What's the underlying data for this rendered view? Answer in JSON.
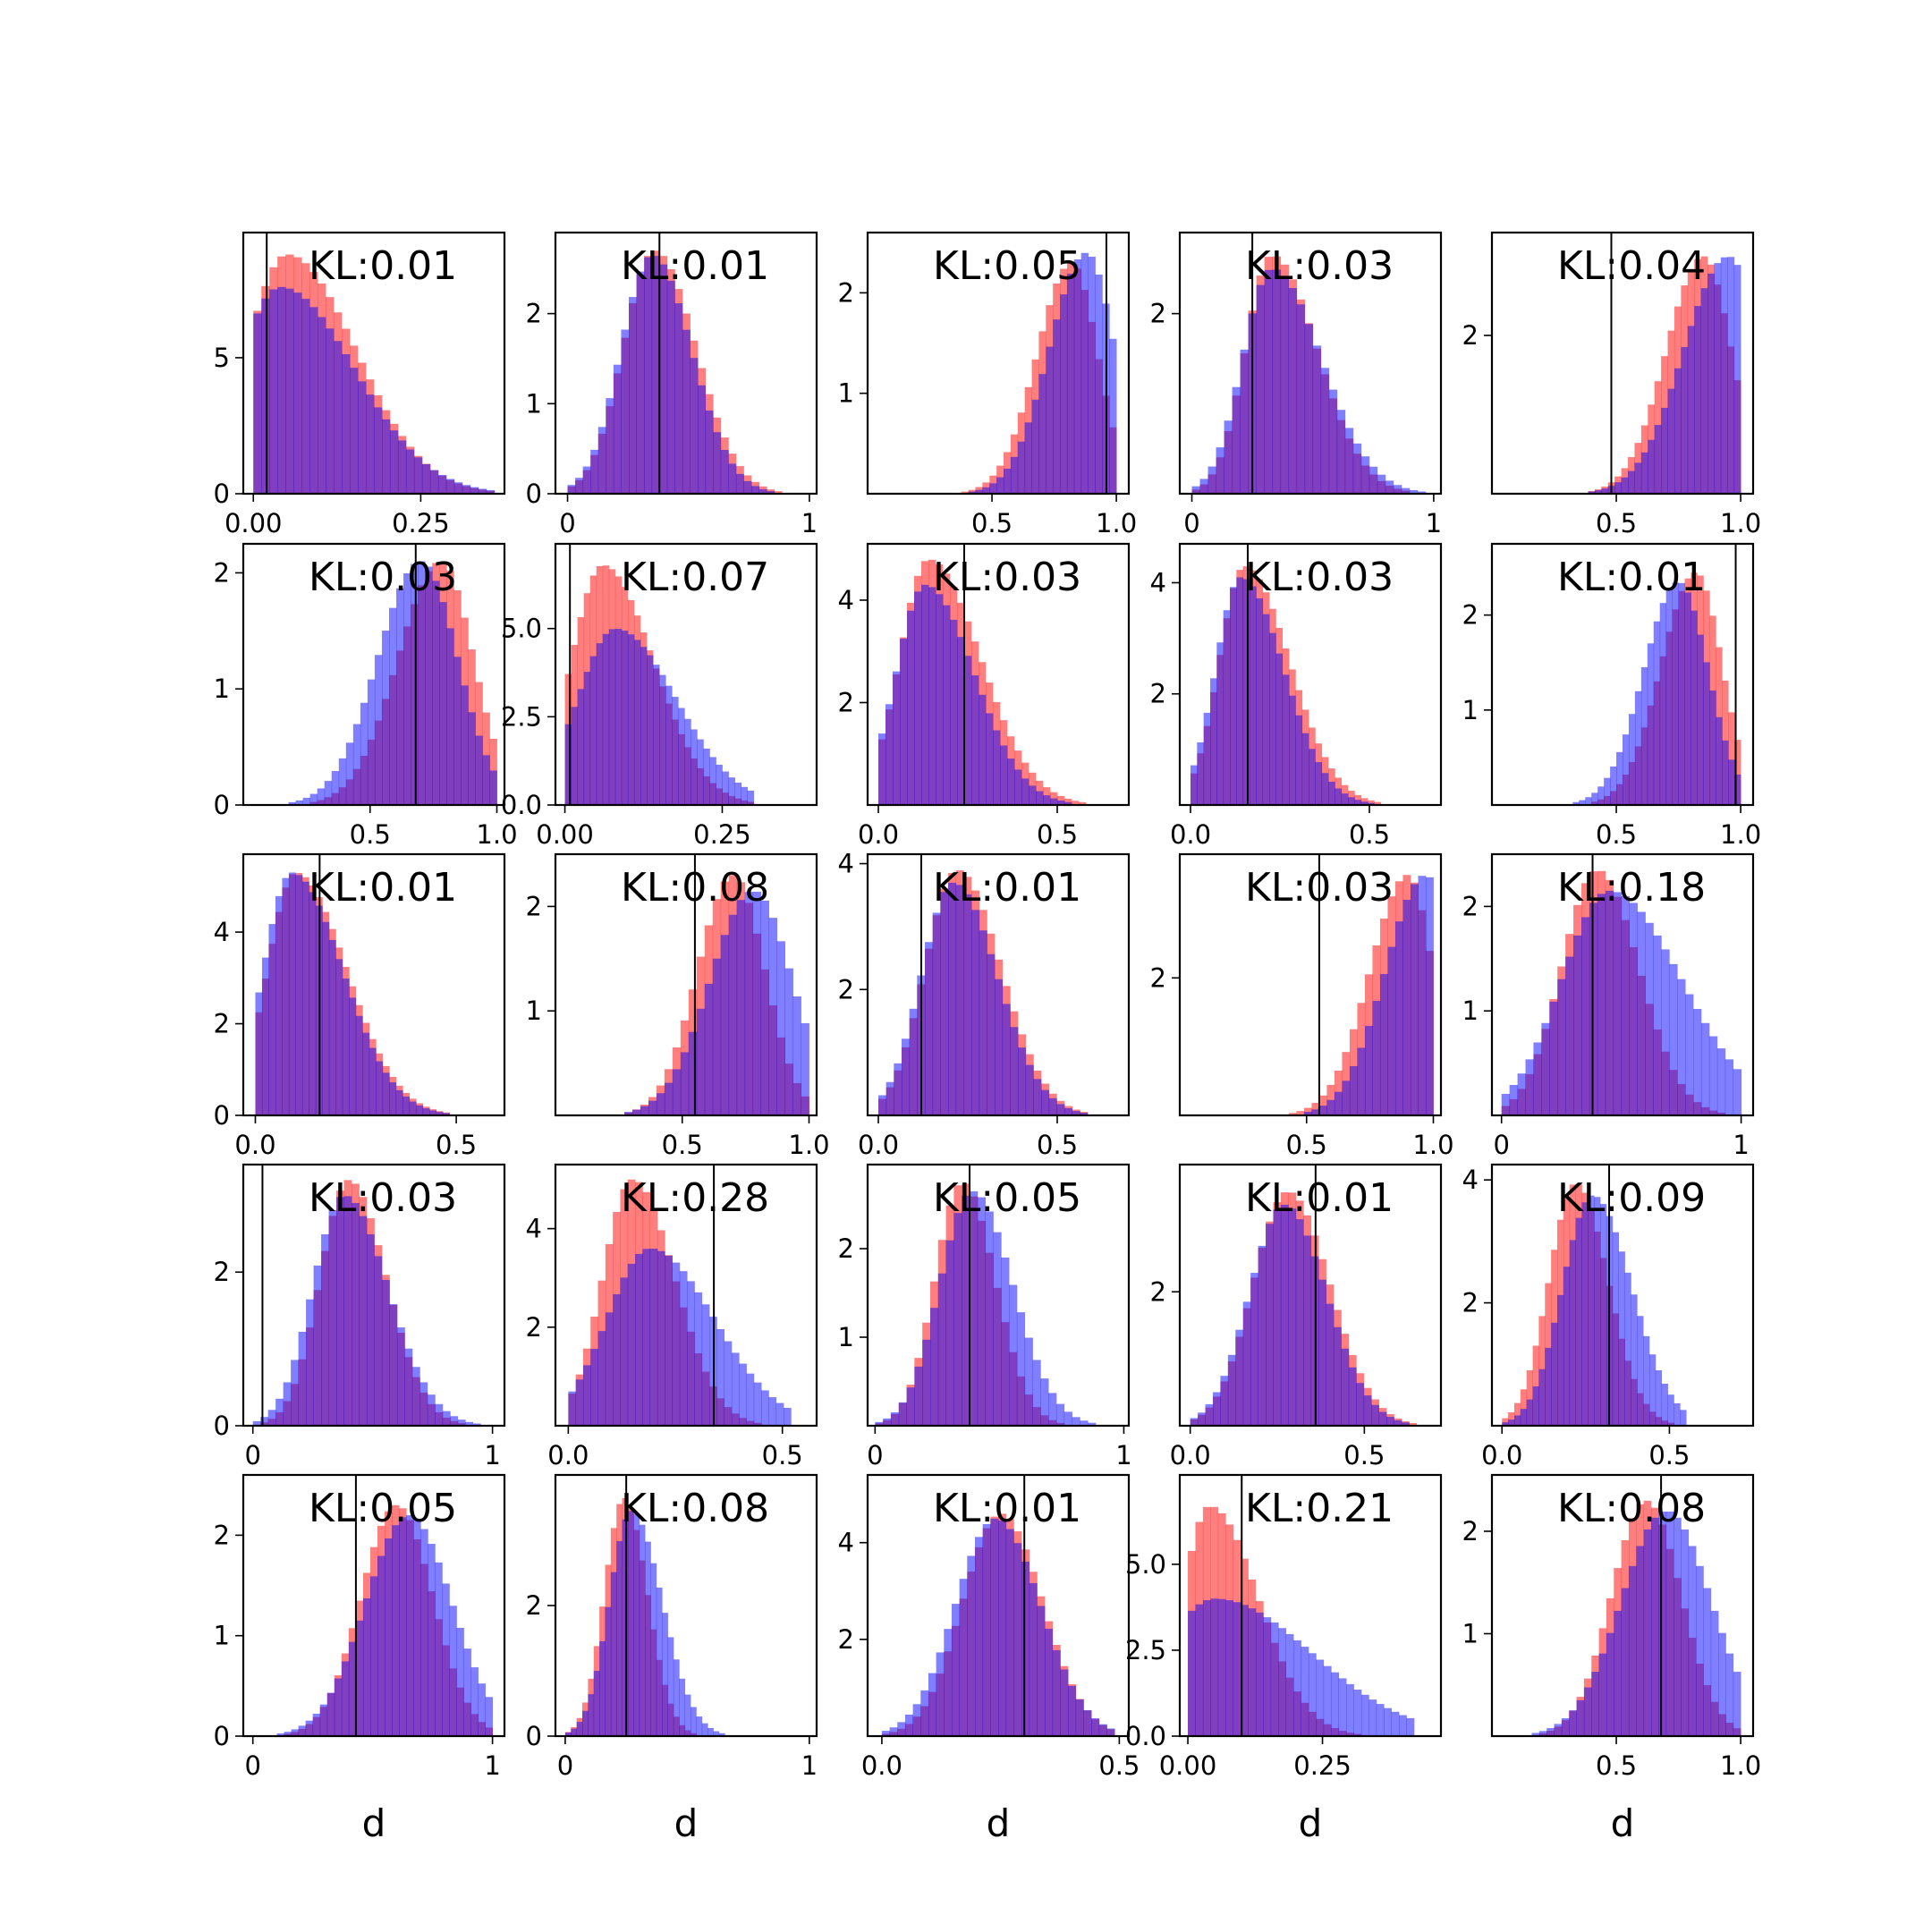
{
  "chart_data": {
    "type": "histogram-grid",
    "rows": 5,
    "cols": 5,
    "series_colors": {
      "red": "#ff0000",
      "blue": "#0000ff",
      "alpha": 0.5,
      "overlap": "#7f3fbf"
    },
    "vline_color": "#000000",
    "xlabel": "d",
    "panels": [
      {
        "kl_label": "KL:0.01",
        "xlim": [
          -0.015,
          0.375
        ],
        "ylim": [
          0,
          9.6
        ],
        "xticks": [
          0,
          0.25
        ],
        "xtick_labels": [
          "0.00",
          "0.25"
        ],
        "yticks": [
          0,
          5
        ],
        "ytick_labels": [
          "0",
          "5"
        ],
        "vline": 0.02,
        "hist_range": [
          0,
          0.36
        ],
        "red": {
          "peak": 0.05,
          "sd": 0.06,
          "skew": 1.7,
          "height": 8.8
        },
        "blue": {
          "peak": 0.04,
          "sd": 0.065,
          "skew": 1.7,
          "height": 7.6
        }
      },
      {
        "kl_label": "KL:0.01",
        "xlim": [
          -0.05,
          1.03
        ],
        "ylim": [
          0,
          2.9
        ],
        "xticks": [
          0,
          1
        ],
        "xtick_labels": [
          "0",
          "1"
        ],
        "yticks": [
          0,
          1,
          2
        ],
        "ytick_labels": [
          "0",
          "1",
          "2"
        ],
        "vline": 0.38,
        "hist_range": [
          0,
          0.95
        ],
        "red": {
          "peak": 0.36,
          "sd": 0.13,
          "skew": 1.3,
          "height": 2.7
        },
        "blue": {
          "peak": 0.35,
          "sd": 0.13,
          "skew": 1.25,
          "height": 2.65
        }
      },
      {
        "kl_label": "KL:0.05",
        "xlim": [
          0,
          1.05
        ],
        "ylim": [
          0,
          2.6
        ],
        "xticks": [
          0.5,
          1
        ],
        "xtick_labels": [
          "0.5",
          "1.0"
        ],
        "yticks": [
          1,
          2
        ],
        "ytick_labels": [
          "1",
          "2"
        ],
        "vline": 0.96,
        "hist_range": [
          0.15,
          1
        ],
        "red": {
          "peak": 0.82,
          "sd": 0.14,
          "skew": 0.75,
          "height": 2.3
        },
        "blue": {
          "peak": 0.88,
          "sd": 0.15,
          "skew": 0.75,
          "height": 2.4
        }
      },
      {
        "kl_label": "KL:0.03",
        "xlim": [
          -0.05,
          1.03
        ],
        "ylim": [
          0,
          2.9
        ],
        "xticks": [
          0,
          1
        ],
        "xtick_labels": [
          "0",
          "1"
        ],
        "yticks": [
          2
        ],
        "ytick_labels": [
          "2"
        ],
        "vline": 0.25,
        "hist_range": [
          0,
          1
        ],
        "red": {
          "peak": 0.33,
          "sd": 0.11,
          "skew": 1.7,
          "height": 2.65
        },
        "blue": {
          "peak": 0.33,
          "sd": 0.12,
          "skew": 1.7,
          "height": 2.5
        }
      },
      {
        "kl_label": "KL:0.04",
        "xlim": [
          0,
          1.05
        ],
        "ylim": [
          0,
          3.3
        ],
        "xticks": [
          0.5,
          1
        ],
        "xtick_labels": [
          "0.5",
          "1.0"
        ],
        "yticks": [
          2
        ],
        "ytick_labels": [
          "2"
        ],
        "vline": 0.48,
        "hist_range": [
          0.2,
          1
        ],
        "red": {
          "peak": 0.85,
          "sd": 0.15,
          "skew": 0.75,
          "height": 3.0
        },
        "blue": {
          "peak": 0.95,
          "sd": 0.18,
          "skew": 0.75,
          "height": 3.0
        }
      },
      {
        "kl_label": "KL:0.03",
        "xlim": [
          0,
          1.03
        ],
        "ylim": [
          0,
          2.25
        ],
        "xticks": [
          0.5,
          1
        ],
        "xtick_labels": [
          "0.5",
          "1.0"
        ],
        "yticks": [
          0,
          1,
          2
        ],
        "ytick_labels": [
          "0",
          "1",
          "2"
        ],
        "vline": 0.68,
        "hist_range": [
          0.15,
          1
        ],
        "red": {
          "peak": 0.78,
          "sd": 0.17,
          "skew": 0.75,
          "height": 2.1
        },
        "blue": {
          "peak": 0.7,
          "sd": 0.17,
          "skew": 0.85,
          "height": 2.1
        }
      },
      {
        "kl_label": "KL:0.07",
        "xlim": [
          -0.015,
          0.4
        ],
        "ylim": [
          0,
          7.4
        ],
        "xticks": [
          0,
          0.25
        ],
        "xtick_labels": [
          "0.00",
          "0.25"
        ],
        "yticks": [
          0,
          2.5,
          5
        ],
        "ytick_labels": [
          "0.0",
          "2.5",
          "5.0"
        ],
        "vline": 0.008,
        "hist_range": [
          0,
          0.3
        ],
        "red": {
          "peak": 0.06,
          "sd": 0.05,
          "skew": 1.6,
          "height": 6.8
        },
        "blue": {
          "peak": 0.08,
          "sd": 0.06,
          "skew": 1.6,
          "height": 5.0
        }
      },
      {
        "kl_label": "KL:0.03",
        "xlim": [
          -0.03,
          0.7
        ],
        "ylim": [
          0,
          5.1
        ],
        "xticks": [
          0,
          0.5
        ],
        "xtick_labels": [
          "0.0",
          "0.5"
        ],
        "yticks": [
          2,
          4
        ],
        "ytick_labels": [
          "2",
          "4"
        ],
        "vline": 0.24,
        "hist_range": [
          0,
          0.6
        ],
        "red": {
          "peak": 0.14,
          "sd": 0.08,
          "skew": 1.8,
          "height": 4.8
        },
        "blue": {
          "peak": 0.13,
          "sd": 0.08,
          "skew": 1.7,
          "height": 4.3
        }
      },
      {
        "kl_label": "KL:0.03",
        "xlim": [
          -0.03,
          0.7
        ],
        "ylim": [
          0,
          4.7
        ],
        "xticks": [
          0,
          0.5
        ],
        "xtick_labels": [
          "0.0",
          "0.5"
        ],
        "yticks": [
          2,
          4
        ],
        "ytick_labels": [
          "2",
          "4"
        ],
        "vline": 0.16,
        "hist_range": [
          0,
          0.55
        ],
        "red": {
          "peak": 0.15,
          "sd": 0.07,
          "skew": 1.8,
          "height": 4.3
        },
        "blue": {
          "peak": 0.14,
          "sd": 0.07,
          "skew": 1.7,
          "height": 4.1
        }
      },
      {
        "kl_label": "KL:0.01",
        "xlim": [
          0,
          1.05
        ],
        "ylim": [
          0,
          2.75
        ],
        "xticks": [
          0.5,
          1
        ],
        "xtick_labels": [
          "0.5",
          "1.0"
        ],
        "yticks": [
          1,
          2
        ],
        "ytick_labels": [
          "1",
          "2"
        ],
        "vline": 0.98,
        "hist_range": [
          0.25,
          1
        ],
        "red": {
          "peak": 0.82,
          "sd": 0.14,
          "skew": 0.75,
          "height": 2.45
        },
        "blue": {
          "peak": 0.75,
          "sd": 0.14,
          "skew": 0.85,
          "height": 2.35
        }
      },
      {
        "kl_label": "KL:0.01",
        "xlim": [
          -0.03,
          0.62
        ],
        "ylim": [
          0,
          5.7
        ],
        "xticks": [
          0,
          0.5
        ],
        "xtick_labels": [
          "0.0",
          "0.5"
        ],
        "yticks": [
          0,
          2,
          4
        ],
        "ytick_labels": [
          "0",
          "2",
          "4"
        ],
        "vline": 0.16,
        "hist_range": [
          0,
          0.5
        ],
        "red": {
          "peak": 0.1,
          "sd": 0.07,
          "skew": 1.8,
          "height": 5.3
        },
        "blue": {
          "peak": 0.09,
          "sd": 0.07,
          "skew": 1.8,
          "height": 5.3
        }
      },
      {
        "kl_label": "KL:0.08",
        "xlim": [
          0,
          1.03
        ],
        "ylim": [
          0,
          2.5
        ],
        "xticks": [
          0.5,
          1
        ],
        "xtick_labels": [
          "0.5",
          "1.0"
        ],
        "yticks": [
          1,
          2
        ],
        "ytick_labels": [
          "1",
          "2"
        ],
        "vline": 0.55,
        "hist_range": [
          0.05,
          1
        ],
        "red": {
          "peak": 0.7,
          "sd": 0.14,
          "skew": 0.9,
          "height": 2.3
        },
        "blue": {
          "peak": 0.78,
          "sd": 0.17,
          "skew": 0.9,
          "height": 2.15
        }
      },
      {
        "kl_label": "KL:0.01",
        "xlim": [
          -0.03,
          0.7
        ],
        "ylim": [
          0,
          4.15
        ],
        "xticks": [
          0,
          0.5
        ],
        "xtick_labels": [
          "0.0",
          "0.5"
        ],
        "yticks": [
          2,
          4
        ],
        "ytick_labels": [
          "2",
          "4"
        ],
        "vline": 0.12,
        "hist_range": [
          0,
          0.65
        ],
        "red": {
          "peak": 0.22,
          "sd": 0.09,
          "skew": 1.35,
          "height": 3.9
        },
        "blue": {
          "peak": 0.21,
          "sd": 0.09,
          "skew": 1.35,
          "height": 3.7
        }
      },
      {
        "kl_label": "KL:0.03",
        "xlim": [
          0,
          1.03
        ],
        "ylim": [
          0,
          3.8
        ],
        "xticks": [
          0.5,
          1
        ],
        "xtick_labels": [
          "0.5",
          "1.0"
        ],
        "yticks": [
          2
        ],
        "ytick_labels": [
          "2"
        ],
        "vline": 0.55,
        "hist_range": [
          0.1,
          1
        ],
        "red": {
          "peak": 0.9,
          "sd": 0.15,
          "skew": 0.65,
          "height": 3.5
        },
        "blue": {
          "peak": 0.97,
          "sd": 0.16,
          "skew": 0.65,
          "height": 3.5
        }
      },
      {
        "kl_label": "KL:0.18",
        "xlim": [
          -0.04,
          1.05
        ],
        "ylim": [
          0,
          2.5
        ],
        "xticks": [
          0,
          1
        ],
        "xtick_labels": [
          "0",
          "1"
        ],
        "yticks": [
          1,
          2
        ],
        "ytick_labels": [
          "1",
          "2"
        ],
        "vline": 0.38,
        "hist_range": [
          0,
          1
        ],
        "red": {
          "peak": 0.4,
          "sd": 0.15,
          "skew": 1.15,
          "height": 2.35
        },
        "blue": {
          "peak": 0.45,
          "sd": 0.2,
          "skew": 1.5,
          "height": 2.15
        }
      },
      {
        "kl_label": "KL:0.03",
        "xlim": [
          -0.04,
          1.05
        ],
        "ylim": [
          0,
          3.4
        ],
        "xticks": [
          0,
          1
        ],
        "xtick_labels": [
          "0",
          "1"
        ],
        "yticks": [
          0,
          2
        ],
        "ytick_labels": [
          "0",
          "2"
        ],
        "vline": 0.04,
        "hist_range": [
          0,
          0.95
        ],
        "red": {
          "peak": 0.4,
          "sd": 0.12,
          "skew": 1.3,
          "height": 3.2
        },
        "blue": {
          "peak": 0.38,
          "sd": 0.13,
          "skew": 1.4,
          "height": 3.0
        }
      },
      {
        "kl_label": "KL:0.28",
        "xlim": [
          -0.03,
          0.58
        ],
        "ylim": [
          0,
          5.3
        ],
        "xticks": [
          0,
          0.5
        ],
        "xtick_labels": [
          "0.0",
          "0.5"
        ],
        "yticks": [
          2,
          4
        ],
        "ytick_labels": [
          "2",
          "4"
        ],
        "vline": 0.34,
        "hist_range": [
          0,
          0.52
        ],
        "red": {
          "peak": 0.15,
          "sd": 0.07,
          "skew": 1.4,
          "height": 5.0
        },
        "blue": {
          "peak": 0.19,
          "sd": 0.1,
          "skew": 1.5,
          "height": 3.6
        }
      },
      {
        "kl_label": "KL:0.05",
        "xlim": [
          -0.03,
          1.02
        ],
        "ylim": [
          0,
          2.95
        ],
        "xticks": [
          0,
          1
        ],
        "xtick_labels": [
          "0",
          "1"
        ],
        "yticks": [
          1,
          2
        ],
        "ytick_labels": [
          "1",
          "2"
        ],
        "vline": 0.38,
        "hist_range": [
          0,
          0.95
        ],
        "red": {
          "peak": 0.35,
          "sd": 0.11,
          "skew": 1.2,
          "height": 2.75
        },
        "blue": {
          "peak": 0.39,
          "sd": 0.13,
          "skew": 1.25,
          "height": 2.65
        }
      },
      {
        "kl_label": "KL:0.01",
        "xlim": [
          -0.03,
          0.72
        ],
        "ylim": [
          0,
          3.9
        ],
        "xticks": [
          0,
          0.5
        ],
        "xtick_labels": [
          "0.0",
          "0.5"
        ],
        "yticks": [
          2
        ],
        "ytick_labels": [
          "2"
        ],
        "vline": 0.36,
        "hist_range": [
          0,
          0.65
        ],
        "red": {
          "peak": 0.28,
          "sd": 0.1,
          "skew": 1.2,
          "height": 3.5
        },
        "blue": {
          "peak": 0.27,
          "sd": 0.1,
          "skew": 1.2,
          "height": 3.3
        }
      },
      {
        "kl_label": "KL:0.09",
        "xlim": [
          -0.03,
          0.75
        ],
        "ylim": [
          0,
          4.25
        ],
        "xticks": [
          0,
          0.5
        ],
        "xtick_labels": [
          "0.0",
          "0.5"
        ],
        "yticks": [
          2,
          4
        ],
        "ytick_labels": [
          "2",
          "4"
        ],
        "vline": 0.32,
        "hist_range": [
          0,
          0.55
        ],
        "red": {
          "peak": 0.22,
          "sd": 0.08,
          "skew": 1.2,
          "height": 3.95
        },
        "blue": {
          "peak": 0.27,
          "sd": 0.09,
          "skew": 1.3,
          "height": 3.75
        }
      },
      {
        "kl_label": "KL:0.05",
        "xlim": [
          -0.04,
          1.05
        ],
        "ylim": [
          0,
          2.6
        ],
        "xticks": [
          0,
          1
        ],
        "xtick_labels": [
          "0",
          "1"
        ],
        "yticks": [
          0,
          1,
          2
        ],
        "ytick_labels": [
          "0",
          "1",
          "2"
        ],
        "vline": 0.43,
        "hist_range": [
          0.1,
          1
        ],
        "red": {
          "peak": 0.6,
          "sd": 0.15,
          "skew": 1.0,
          "height": 2.3
        },
        "blue": {
          "peak": 0.65,
          "sd": 0.18,
          "skew": 1.0,
          "height": 2.2
        }
      },
      {
        "kl_label": "KL:0.08",
        "xlim": [
          -0.04,
          1.03
        ],
        "ylim": [
          0,
          4.0
        ],
        "xticks": [
          0,
          1
        ],
        "xtick_labels": [
          "0",
          "1"
        ],
        "yticks": [
          0,
          2
        ],
        "ytick_labels": [
          "0",
          "2"
        ],
        "vline": 0.25,
        "hist_range": [
          0,
          0.7
        ],
        "red": {
          "peak": 0.24,
          "sd": 0.08,
          "skew": 1.2,
          "height": 3.65
        },
        "blue": {
          "peak": 0.27,
          "sd": 0.09,
          "skew": 1.4,
          "height": 3.45
        }
      },
      {
        "kl_label": "KL:0.01",
        "xlim": [
          -0.03,
          0.52
        ],
        "ylim": [
          0,
          5.4
        ],
        "xticks": [
          0,
          0.5
        ],
        "xtick_labels": [
          "0.0",
          "0.5"
        ],
        "yticks": [
          2,
          4
        ],
        "ytick_labels": [
          "2",
          "4"
        ],
        "vline": 0.3,
        "hist_range": [
          0,
          0.49
        ],
        "red": {
          "peak": 0.25,
          "sd": 0.08,
          "skew": 1.1,
          "height": 4.6
        },
        "blue": {
          "peak": 0.24,
          "sd": 0.085,
          "skew": 1.1,
          "height": 4.5
        }
      },
      {
        "kl_label": "KL:0.21",
        "xlim": [
          -0.015,
          0.47
        ],
        "ylim": [
          0,
          7.6
        ],
        "xticks": [
          0,
          0.25
        ],
        "xtick_labels": [
          "0.00",
          "0.25"
        ],
        "yticks": [
          0,
          2.5,
          5
        ],
        "ytick_labels": [
          "0.0",
          "2.5",
          "5.0"
        ],
        "vline": 0.1,
        "hist_range": [
          0,
          0.42
        ],
        "red": {
          "peak": 0.04,
          "sd": 0.05,
          "skew": 1.8,
          "height": 6.7
        },
        "blue": {
          "peak": 0.05,
          "sd": 0.1,
          "skew": 1.8,
          "height": 4.0
        }
      },
      {
        "kl_label": "KL:0.08",
        "xlim": [
          0,
          1.05
        ],
        "ylim": [
          0,
          2.55
        ],
        "xticks": [
          0.5,
          1
        ],
        "xtick_labels": [
          "0.5",
          "1.0"
        ],
        "yticks": [
          1,
          2
        ],
        "ytick_labels": [
          "1",
          "2"
        ],
        "vline": 0.68,
        "hist_range": [
          0.1,
          1
        ],
        "red": {
          "peak": 0.62,
          "sd": 0.14,
          "skew": 1.0,
          "height": 2.3
        },
        "blue": {
          "peak": 0.7,
          "sd": 0.18,
          "skew": 1.0,
          "height": 2.2
        }
      }
    ]
  }
}
